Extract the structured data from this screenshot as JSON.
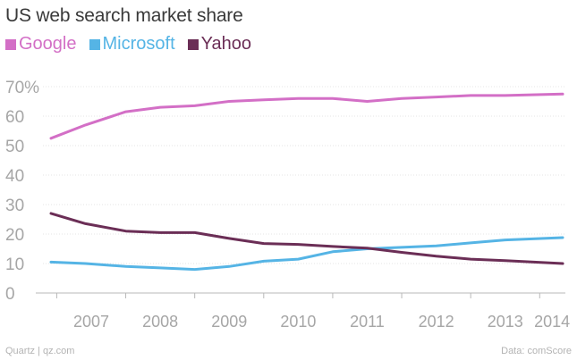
{
  "chart_data": {
    "type": "line",
    "title": "US web search market share",
    "ylim": [
      0,
      70
    ],
    "y_ticks": [
      0,
      10,
      20,
      30,
      40,
      50,
      60,
      70
    ],
    "y_tick_labels": [
      "0",
      "10",
      "20",
      "30",
      "40",
      "50",
      "60",
      "70%"
    ],
    "x_ticks": [
      2007,
      2008,
      2009,
      2010,
      2011,
      2012,
      2013,
      2014
    ],
    "x_tick_labels": [
      "2007",
      "2008",
      "2009",
      "2010",
      "2011",
      "2012",
      "2013",
      "2014"
    ],
    "x": [
      "2006-12",
      "2007-06",
      "2008-01",
      "2008-07",
      "2009-01",
      "2009-07",
      "2010-01",
      "2010-07",
      "2011-01",
      "2011-07",
      "2012-01",
      "2012-07",
      "2013-01",
      "2013-07",
      "2014-05"
    ],
    "series": [
      {
        "name": "Google",
        "color": "#d36fc6",
        "values": [
          52.5,
          57.0,
          61.5,
          63.0,
          63.5,
          65.0,
          65.5,
          66.0,
          66.0,
          65.0,
          66.0,
          66.5,
          67.0,
          67.0,
          67.5
        ]
      },
      {
        "name": "Microsoft",
        "color": "#55b4e5",
        "values": [
          10.5,
          10.0,
          9.0,
          8.5,
          8.0,
          9.0,
          10.8,
          11.5,
          14.0,
          15.0,
          15.5,
          16.0,
          17.0,
          18.0,
          18.8
        ]
      },
      {
        "name": "Yahoo",
        "color": "#6b2e56",
        "values": [
          27.0,
          23.5,
          21.0,
          20.5,
          20.5,
          18.5,
          16.8,
          16.5,
          15.8,
          15.2,
          13.8,
          12.5,
          11.5,
          11.0,
          10.0
        ]
      }
    ]
  },
  "footer": {
    "source_left": "Quartz | qz.com",
    "source_right": "Data: comScore"
  }
}
